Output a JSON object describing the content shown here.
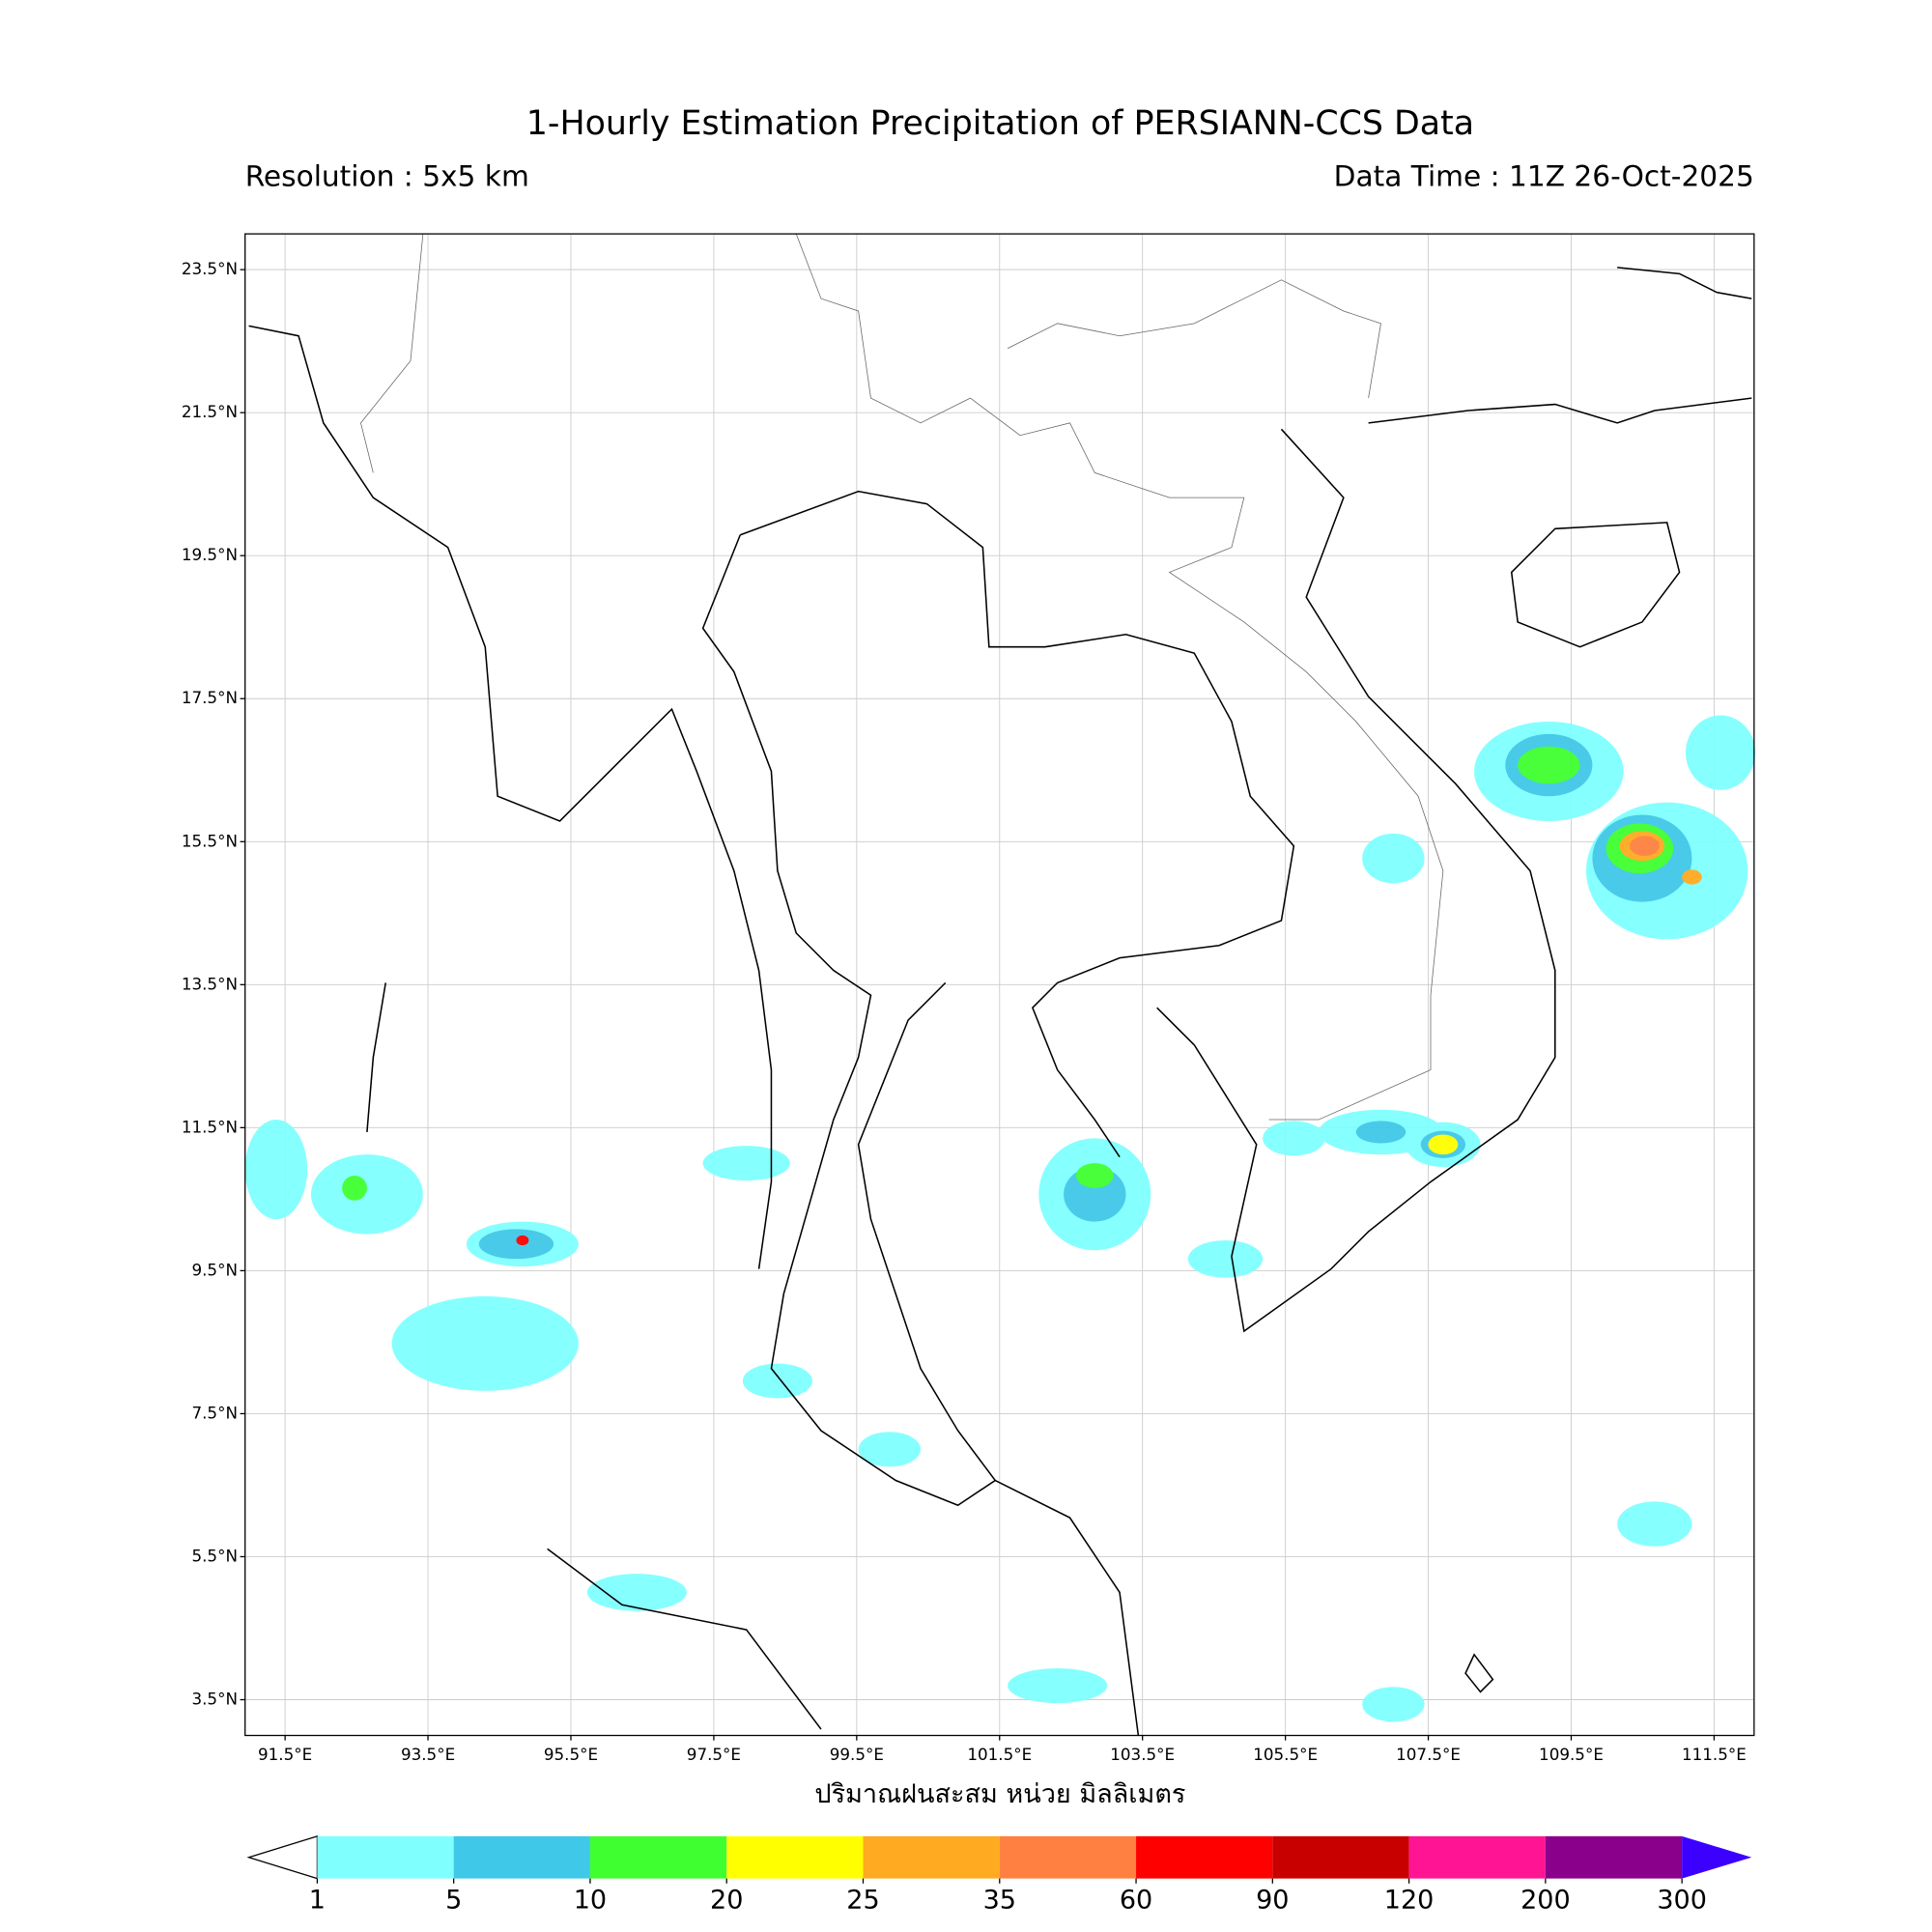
{
  "header": {
    "title": "1-Hourly Estimation Precipitation of PERSIANN-CCS Data",
    "resolution": "Resolution : 5x5 km",
    "data_time": "Data Time : 11Z 26-Oct-2025"
  },
  "map": {
    "lon_lim": [
      90.94,
      112.06
    ],
    "lat_lim": [
      3.0,
      24.0
    ],
    "lon_ticks": [
      {
        "value": 91.5,
        "label": "91.5°E"
      },
      {
        "value": 93.5,
        "label": "93.5°E"
      },
      {
        "value": 95.5,
        "label": "95.5°E"
      },
      {
        "value": 97.5,
        "label": "97.5°E"
      },
      {
        "value": 99.5,
        "label": "99.5°E"
      },
      {
        "value": 101.5,
        "label": "101.5°E"
      },
      {
        "value": 103.5,
        "label": "103.5°E"
      },
      {
        "value": 105.5,
        "label": "105.5°E"
      },
      {
        "value": 107.5,
        "label": "107.5°E"
      },
      {
        "value": 109.5,
        "label": "109.5°E"
      },
      {
        "value": 111.5,
        "label": "111.5°E"
      }
    ],
    "lat_ticks": [
      {
        "value": 23.5,
        "label": "23.5°N"
      },
      {
        "value": 21.5,
        "label": "21.5°N"
      },
      {
        "value": 19.5,
        "label": "19.5°N"
      },
      {
        "value": 17.5,
        "label": "17.5°N"
      },
      {
        "value": 15.5,
        "label": "15.5°N"
      },
      {
        "value": 13.5,
        "label": "13.5°N"
      },
      {
        "value": 11.5,
        "label": "11.5°N"
      },
      {
        "value": 9.5,
        "label": "9.5°N"
      },
      {
        "value": 7.5,
        "label": "7.5°N"
      },
      {
        "value": 5.5,
        "label": "5.5°N"
      },
      {
        "value": 3.5,
        "label": "3.5°N"
      }
    ],
    "x_label": "ปริมาณฝนสะสม หน่วย มิลลิเมตร"
  },
  "colorbar": {
    "levels": [
      1,
      5,
      10,
      20,
      25,
      35,
      60,
      90,
      120,
      200,
      300
    ],
    "colors": [
      "#80ffff",
      "#40c8e8",
      "#40ff30",
      "#ffff00",
      "#ffaa20",
      "#ff8040",
      "#ff0000",
      "#c80000",
      "#ff1493",
      "#8b008b"
    ],
    "under_color": "#ffffff",
    "over_color": "#3b00ff"
  }
}
